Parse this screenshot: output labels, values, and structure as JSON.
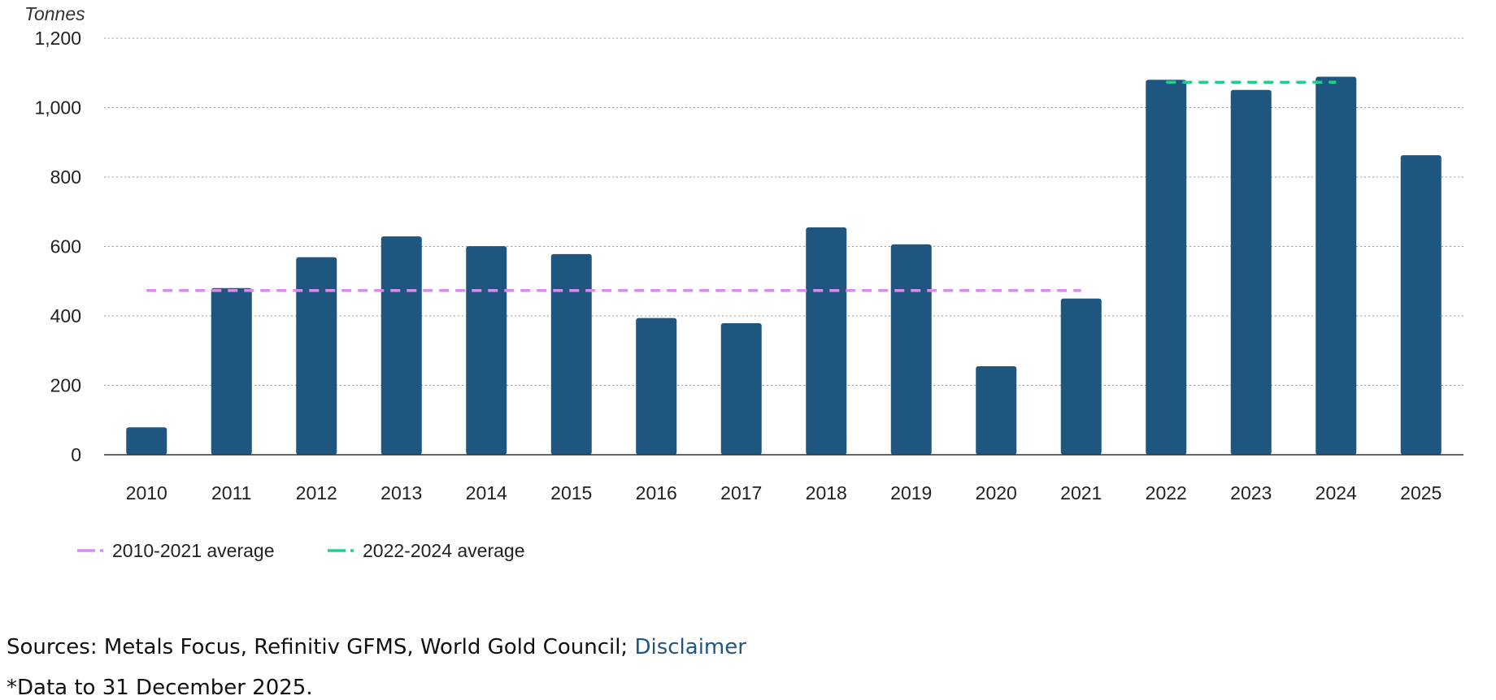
{
  "chart_data": {
    "type": "bar",
    "ylabel": "Tonnes",
    "ylim": [
      0,
      1200
    ],
    "yticks": [
      0,
      200,
      400,
      600,
      800,
      1000,
      1200
    ],
    "ytick_labels": [
      "0",
      "200",
      "400",
      "600",
      "800",
      "1,000",
      "1,200"
    ],
    "categories": [
      "2010",
      "2011",
      "2012",
      "2013",
      "2014",
      "2015",
      "2016",
      "2017",
      "2018",
      "2019",
      "2020",
      "2021",
      "2022",
      "2023",
      "2024",
      "2025"
    ],
    "values": [
      79,
      480,
      569,
      629,
      601,
      578,
      394,
      379,
      655,
      606,
      255,
      450,
      1080,
      1051,
      1089,
      863
    ],
    "bar_color": "#1f5680",
    "grid": true,
    "averages": [
      {
        "name": "2010-2021 average",
        "value": 473,
        "from": "2010",
        "to": "2021",
        "color": "#d98cf0"
      },
      {
        "name": "2022-2024 average",
        "value": 1073,
        "from": "2022",
        "to": "2024",
        "color": "#1fcf8c"
      }
    ],
    "legend_position": "bottom-left"
  },
  "footer": {
    "sources_text": "Sources: Metals Focus, Refinitiv GFMS, World Gold Council; ",
    "disclaimer_link": "Disclaimer",
    "note": "*Data to 31 December 2025."
  }
}
